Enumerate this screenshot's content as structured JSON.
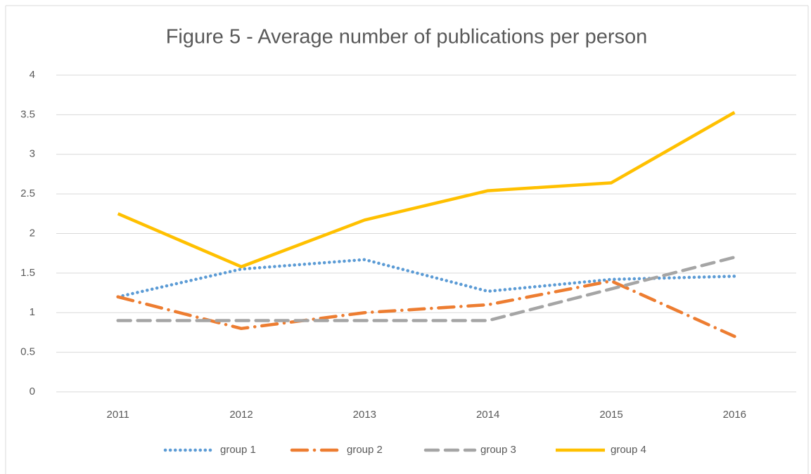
{
  "chart_data": {
    "type": "line",
    "title": "Figure 5 - Average number of publications per person",
    "categories": [
      "2011",
      "2012",
      "2013",
      "2014",
      "2015",
      "2016"
    ],
    "series": [
      {
        "name": "group 1",
        "color": "#5b9bd5",
        "dash": "dot",
        "values": [
          1.2,
          1.55,
          1.67,
          1.27,
          1.42,
          1.46
        ]
      },
      {
        "name": "group 2",
        "color": "#ed7d31",
        "dash": "long-dash-dot",
        "values": [
          1.2,
          0.8,
          1.0,
          1.1,
          1.4,
          0.7
        ]
      },
      {
        "name": "group 3",
        "color": "#a5a5a5",
        "dash": "dash",
        "values": [
          0.9,
          0.9,
          0.9,
          0.9,
          1.3,
          1.7
        ]
      },
      {
        "name": "group 4",
        "color": "#ffc000",
        "dash": "solid",
        "values": [
          2.25,
          1.58,
          2.17,
          2.54,
          2.64,
          3.53
        ]
      }
    ],
    "ylim": [
      0,
      4
    ],
    "yticks": [
      0,
      0.5,
      1,
      1.5,
      2,
      2.5,
      3,
      3.5,
      4
    ],
    "grid": true,
    "legend": "bottom"
  }
}
